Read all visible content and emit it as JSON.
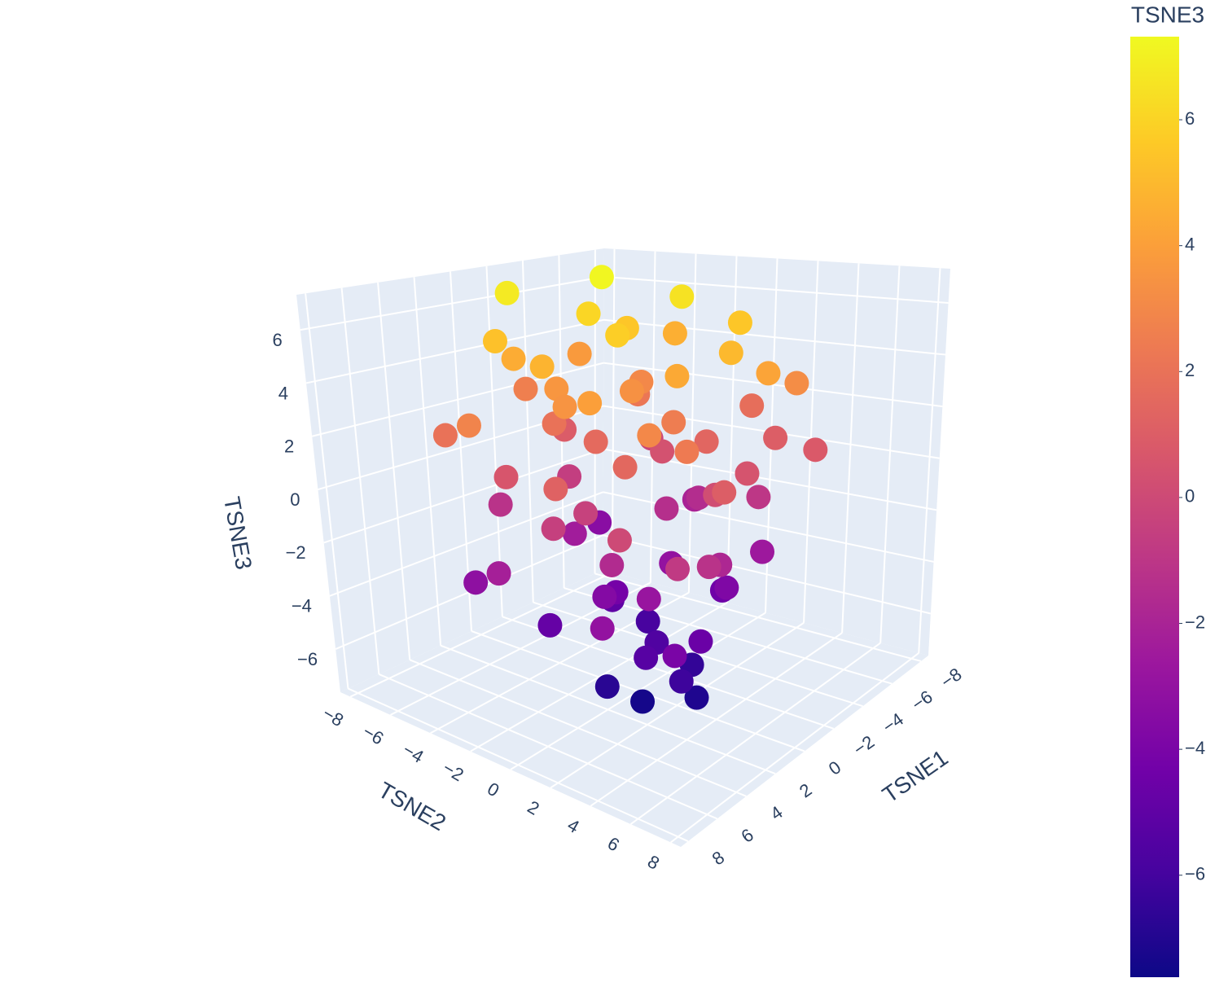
{
  "chart_data": {
    "type": "scatter3d",
    "xlabel": "TSNE1",
    "ylabel": "TSNE2",
    "zlabel": "TSNE3",
    "x": [
      -2,
      1,
      -3,
      0,
      2,
      -4,
      3,
      -1,
      4,
      -5,
      1,
      -2,
      5,
      -3,
      2,
      0,
      -5,
      4,
      6,
      -1,
      3,
      -4,
      5,
      -6,
      1,
      -2,
      6,
      2,
      -5,
      4,
      -3,
      0,
      6,
      -6,
      3,
      -1,
      5,
      -4,
      2,
      -2,
      4,
      1,
      -5,
      6,
      0,
      -3,
      3,
      -1,
      5,
      -4,
      2,
      -2,
      4,
      0,
      -3,
      1,
      3,
      -1,
      2,
      0,
      -2,
      1,
      -1,
      2,
      0,
      1,
      -3,
      1,
      3,
      -2,
      5,
      -4,
      0,
      2,
      -1,
      4,
      -5,
      3,
      -2,
      6
    ],
    "y": [
      -3,
      -5,
      0,
      -2,
      1,
      2,
      -4,
      4,
      -1,
      -2,
      3,
      5,
      2,
      -5,
      -2,
      0,
      4,
      4,
      -3,
      -6,
      5,
      -3,
      -5,
      1,
      -1,
      2,
      1,
      6,
      5,
      -3,
      -1,
      4,
      4,
      -4,
      0,
      -4,
      6,
      3,
      -5,
      0,
      2,
      5,
      -1,
      -2,
      -3,
      4,
      3,
      1,
      -4,
      -5,
      0,
      3,
      5,
      -1,
      2,
      4,
      -2,
      -2,
      2,
      1,
      -1,
      3,
      2,
      0,
      3,
      1,
      -2,
      -3,
      2,
      4,
      0,
      0,
      2,
      -4,
      -1,
      0,
      3,
      6,
      -5,
      3
    ],
    "z": [
      7.2,
      6.8,
      6.5,
      6.1,
      5.8,
      5.5,
      5.3,
      5.0,
      4.8,
      4.6,
      4.4,
      4.2,
      4.0,
      3.8,
      3.6,
      3.4,
      3.2,
      3.0,
      2.8,
      2.6,
      2.4,
      2.2,
      2.0,
      1.8,
      1.6,
      1.4,
      1.2,
      1.0,
      0.8,
      0.6,
      0.4,
      0.2,
      0.0,
      -0.2,
      -0.4,
      -0.6,
      -0.8,
      -1.0,
      -1.2,
      -1.4,
      -1.6,
      -1.8,
      -2.0,
      -2.2,
      -2.4,
      -2.6,
      -2.8,
      -3.0,
      -3.2,
      -3.4,
      -3.6,
      -3.8,
      -4.0,
      -4.2,
      -4.4,
      -4.6,
      -4.8,
      -5.0,
      -5.3,
      -5.6,
      -5.9,
      -6.2,
      -6.5,
      -6.8,
      -7.1,
      -7.4,
      3.0,
      2.0,
      1.5,
      0.5,
      -0.5,
      -1.5,
      2.5,
      4.5,
      5.5,
      3.5,
      1.0,
      -1.2,
      0.9,
      -3.0
    ],
    "xlim": [
      -8.5,
      8.5
    ],
    "ylim": [
      -8.5,
      8.5
    ],
    "zlim": [
      -7.62,
      7.32
    ],
    "xticks": [
      {
        "value": -8,
        "label": "−8"
      },
      {
        "value": -6,
        "label": "−6"
      },
      {
        "value": -4,
        "label": "−4"
      },
      {
        "value": -2,
        "label": "−2"
      },
      0,
      2,
      4,
      6,
      8
    ],
    "yticks": [
      {
        "value": -8,
        "label": "−8"
      },
      {
        "value": -6,
        "label": "−6"
      },
      {
        "value": -4,
        "label": "−4"
      },
      {
        "value": -2,
        "label": "−2"
      },
      0,
      2,
      4,
      6,
      8
    ],
    "zticks": [
      {
        "value": -6,
        "label": "−6"
      },
      {
        "value": -4,
        "label": "−4"
      },
      {
        "value": -2,
        "label": "−2"
      },
      0,
      2,
      4,
      6
    ],
    "colorscale": [
      "#0d0887",
      "#46039f",
      "#7201a8",
      "#9c179e",
      "#bd3786",
      "#d8576b",
      "#ed7953",
      "#fb9f3a",
      "#fdca26",
      "#f0f921"
    ],
    "colorbar": {
      "title": "TSNE3",
      "lim": [
        -7.62,
        7.32
      ],
      "ticks": [
        {
          "value": -6,
          "label": "−6"
        },
        {
          "value": -4,
          "label": "−4"
        },
        {
          "value": -2,
          "label": "−2"
        },
        0,
        2,
        4,
        6
      ]
    }
  }
}
